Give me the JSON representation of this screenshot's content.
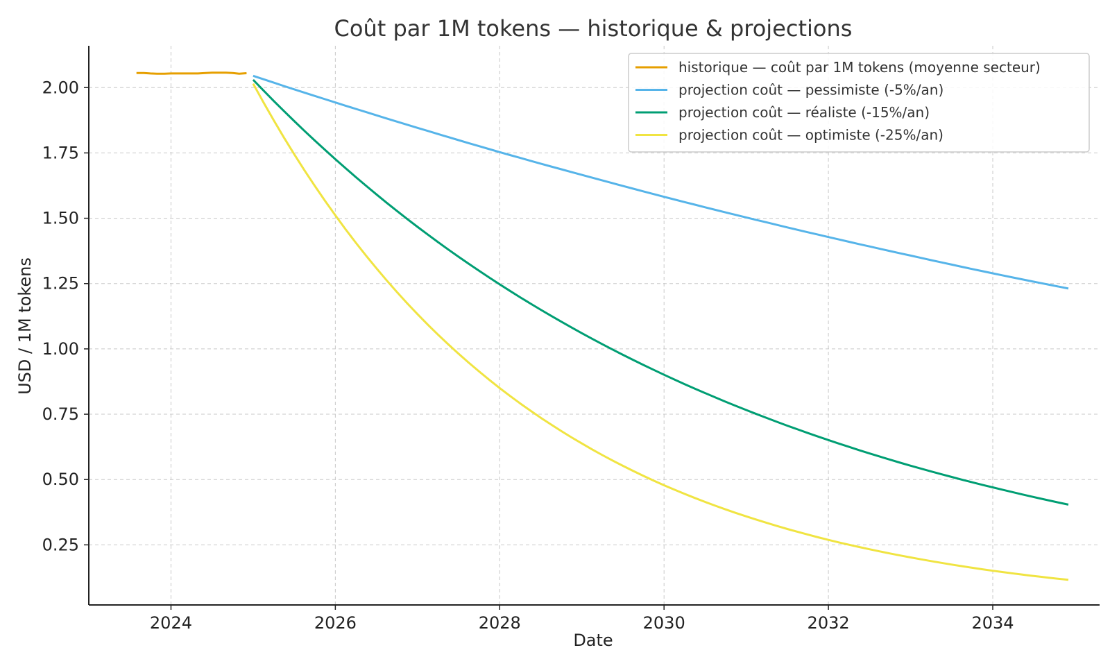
{
  "chart_data": {
    "type": "line",
    "title": "Coût par 1M tokens — historique & projections",
    "xlabel": "Date",
    "ylabel": "USD / 1M tokens",
    "xlim": [
      2023.0,
      2035.3
    ],
    "ylim": [
      0.02,
      2.16
    ],
    "x_ticks": [
      2024,
      2026,
      2028,
      2030,
      2032,
      2034
    ],
    "x_tick_labels": [
      "2024",
      "2026",
      "2028",
      "2030",
      "2032",
      "2034"
    ],
    "y_ticks": [
      0.25,
      0.5,
      0.75,
      1.0,
      1.25,
      1.5,
      1.75,
      2.0
    ],
    "y_tick_labels": [
      "0.25",
      "0.50",
      "0.75",
      "1.00",
      "1.25",
      "1.50",
      "1.75",
      "2.00"
    ],
    "grid": true,
    "legend_position": "top-right",
    "series": [
      {
        "name": "historique — coût par 1M tokens (moyenne secteur)",
        "color": "#E69F00",
        "x": [
          2023.58,
          2023.67,
          2023.75,
          2023.83,
          2023.92,
          2024.0,
          2024.08,
          2024.17,
          2024.25,
          2024.33,
          2024.42,
          2024.5,
          2024.58,
          2024.67,
          2024.75,
          2024.83,
          2024.92
        ],
        "y": [
          2.056,
          2.056,
          2.054,
          2.053,
          2.053,
          2.054,
          2.054,
          2.054,
          2.054,
          2.054,
          2.056,
          2.057,
          2.057,
          2.057,
          2.056,
          2.053,
          2.055
        ]
      },
      {
        "name": "projection coût — pessimiste (-5%/an)",
        "color": "#56B4E9",
        "x": [
          2025.0,
          2026.0,
          2027.0,
          2028.0,
          2029.0,
          2030.0,
          2031.0,
          2032.0,
          2033.0,
          2034.0,
          2034.92
        ],
        "y": [
          2.045,
          1.943,
          1.846,
          1.753,
          1.666,
          1.582,
          1.503,
          1.428,
          1.357,
          1.289,
          1.231
        ]
      },
      {
        "name": "projection coût — réaliste (-15%/an)",
        "color": "#009E73",
        "x": [
          2025.0,
          2026.0,
          2027.0,
          2028.0,
          2029.0,
          2030.0,
          2031.0,
          2032.0,
          2033.0,
          2034.0,
          2034.92
        ],
        "y": [
          2.03,
          1.726,
          1.467,
          1.247,
          1.06,
          0.901,
          0.766,
          0.651,
          0.553,
          0.47,
          0.404
        ]
      },
      {
        "name": "projection coût — optimiste (-25%/an)",
        "color": "#F0E442",
        "x": [
          2025.0,
          2026.0,
          2027.0,
          2028.0,
          2029.0,
          2030.0,
          2031.0,
          2032.0,
          2033.0,
          2034.0,
          2034.92
        ],
        "y": [
          2.015,
          1.511,
          1.133,
          0.85,
          0.638,
          0.478,
          0.359,
          0.269,
          0.202,
          0.151,
          0.116
        ]
      }
    ]
  }
}
